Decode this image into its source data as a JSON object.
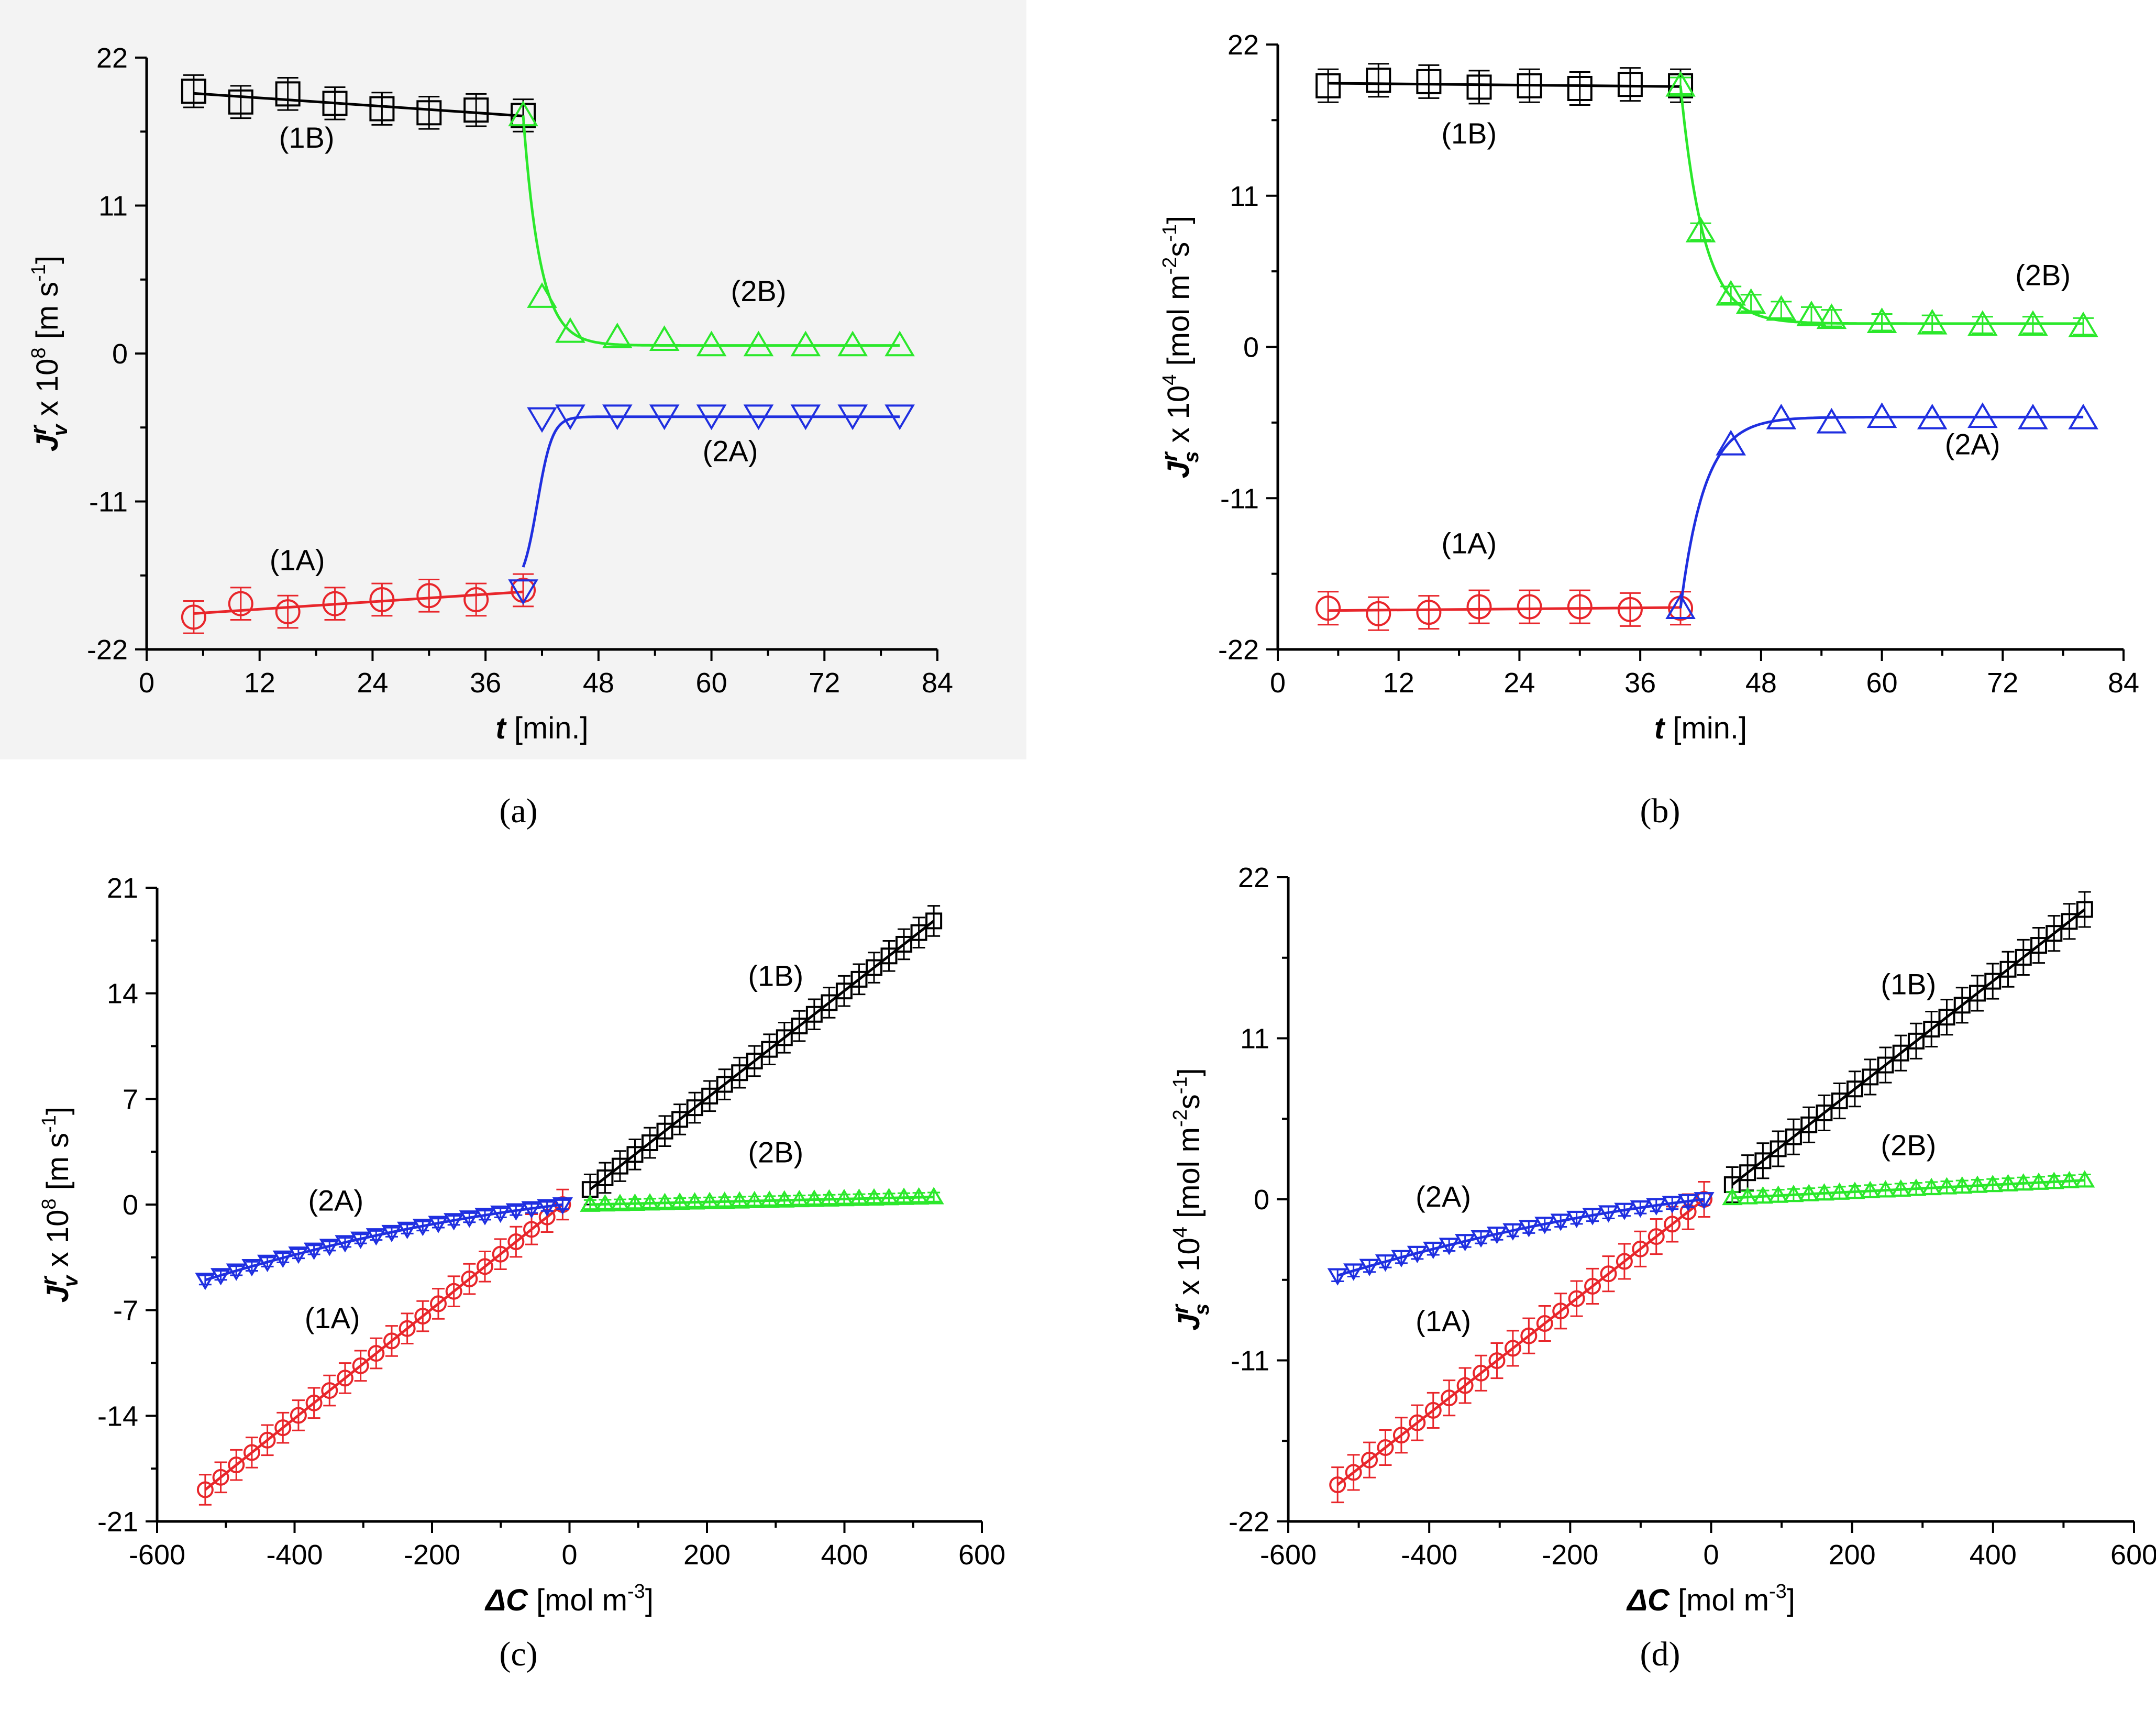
{
  "colors": {
    "black": "#000000",
    "red": "#e8262b",
    "green": "#2be82b",
    "blue": "#1f2fe0"
  },
  "chart_data": [
    {
      "id": "a",
      "type": "line",
      "caption": "(a)",
      "xlabel_var": "t",
      "xlabel_unit": " [min.]",
      "ylabel_var": "J",
      "ylabel_sup": "r",
      "ylabel_sub": "v",
      "ylabel_rest": " x 10",
      "ylabel_exp": "8",
      "ylabel_unit": " [m s",
      "ylabel_unit_exp": "-1",
      "ylabel_close": "]",
      "xlim": [
        0,
        84
      ],
      "ylim": [
        -22,
        22
      ],
      "xticks": [
        "0",
        "12",
        "24",
        "36",
        "48",
        "60",
        "72",
        "84"
      ],
      "yticks": [
        "-22",
        "-11",
        "0",
        "11",
        "22"
      ],
      "series": [
        {
          "name": "(1B)",
          "color": "black",
          "marker": "square",
          "size": "large",
          "x": [
            5,
            10,
            15,
            20,
            25,
            30,
            35,
            40
          ],
          "y": [
            19.5,
            18.7,
            19.3,
            18.6,
            18.2,
            17.9,
            18.1,
            17.7
          ],
          "err": 1.2,
          "fit": "linear"
        },
        {
          "name": "(1A)",
          "color": "red",
          "marker": "circle",
          "size": "large",
          "x": [
            5,
            10,
            15,
            20,
            25,
            30,
            35,
            40
          ],
          "y": [
            -19.6,
            -18.6,
            -19.2,
            -18.6,
            -18.3,
            -18.0,
            -18.3,
            -17.6
          ],
          "err": 1.2,
          "fit": "linear"
        },
        {
          "name": "(2B)",
          "color": "green",
          "marker": "triangle-up",
          "size": "large",
          "x": [
            40,
            42,
            45,
            50,
            55,
            60,
            65,
            70,
            75,
            80
          ],
          "y": [
            17.7,
            4.2,
            1.6,
            1.2,
            1.0,
            0.6,
            0.6,
            0.6,
            0.6,
            0.6
          ],
          "err": 0,
          "fit": "exp",
          "start": 17.7,
          "end": 0.6,
          "t0": 40,
          "tau": 1.8
        },
        {
          "name": "(2A)",
          "color": "blue",
          "marker": "triangle-down",
          "size": "large",
          "x": [
            40,
            42,
            45,
            50,
            55,
            60,
            65,
            70,
            75,
            80
          ],
          "y": [
            -17.6,
            -4.8,
            -4.6,
            -4.6,
            -4.6,
            -4.6,
            -4.6,
            -4.6,
            -4.6,
            -4.6
          ],
          "err": 0,
          "fit": "sigmoid",
          "start": -17.6,
          "end": -4.7,
          "t0": 41.5,
          "k": 0.8
        }
      ],
      "annotations": [
        {
          "text": "(1B)",
          "x": 17,
          "y": 15.3
        },
        {
          "text": "(2B)",
          "x": 65,
          "y": 3.9
        },
        {
          "text": "(2A)",
          "x": 62,
          "y": -8.0
        },
        {
          "text": "(1A)",
          "x": 16,
          "y": -16.1
        }
      ]
    },
    {
      "id": "b",
      "type": "line",
      "caption": "(b)",
      "xlabel_var": "t",
      "xlabel_unit": " [min.]",
      "ylabel_var": "J",
      "ylabel_sup": "r",
      "ylabel_sub": "s",
      "ylabel_rest": " x 10",
      "ylabel_exp": "4",
      "ylabel_unit": " [mol m",
      "ylabel_unit_exp": "-2",
      "ylabel_unit2": "s",
      "ylabel_unit2_exp": "-1",
      "ylabel_close": "]",
      "xlim": [
        0,
        84
      ],
      "ylim": [
        -22,
        22
      ],
      "xticks": [
        "0",
        "12",
        "24",
        "36",
        "48",
        "60",
        "72",
        "84"
      ],
      "yticks": [
        "-22",
        "-11",
        "0",
        "11",
        "22"
      ],
      "series": [
        {
          "name": "(1B)",
          "color": "black",
          "marker": "square",
          "size": "large",
          "x": [
            5,
            10,
            15,
            20,
            25,
            30,
            35,
            40
          ],
          "y": [
            19.0,
            19.4,
            19.3,
            18.9,
            19.0,
            18.8,
            19.1,
            19.0
          ],
          "err": 1.2,
          "fit": "linear"
        },
        {
          "name": "(1A)",
          "color": "red",
          "marker": "circle",
          "size": "large",
          "x": [
            5,
            10,
            15,
            20,
            25,
            30,
            35,
            40
          ],
          "y": [
            -19.0,
            -19.4,
            -19.3,
            -18.9,
            -18.9,
            -18.9,
            -19.1,
            -19.0
          ],
          "err": 1.2,
          "fit": "linear"
        },
        {
          "name": "(2B)",
          "color": "green",
          "marker": "triangle-up",
          "size": "large",
          "x": [
            40,
            42,
            45,
            47,
            50,
            53,
            55,
            60,
            65,
            70,
            75,
            80
          ],
          "y": [
            19.0,
            8.4,
            3.8,
            3.2,
            2.7,
            2.3,
            2.1,
            1.8,
            1.7,
            1.6,
            1.6,
            1.5
          ],
          "err": 0.6,
          "fit": "exp",
          "start": 19.0,
          "end": 1.7,
          "t0": 40,
          "tau": 2.3
        },
        {
          "name": "(2A)",
          "color": "blue",
          "marker": "triangle-up",
          "size": "large",
          "x": [
            40,
            45,
            50,
            55,
            60,
            65,
            70,
            75,
            80
          ],
          "y": [
            -19.0,
            -7.1,
            -5.2,
            -5.5,
            -5.1,
            -5.2,
            -5.1,
            -5.2,
            -5.2
          ],
          "err": 0,
          "fit": "exp",
          "start": -19.0,
          "end": -5.1,
          "t0": 40,
          "tau": 2.4
        }
      ],
      "annotations": [
        {
          "text": "(1B)",
          "x": 19,
          "y": 14.8
        },
        {
          "text": "(2B)",
          "x": 76,
          "y": 4.5
        },
        {
          "text": "(2A)",
          "x": 69,
          "y": -7.8
        },
        {
          "text": "(1A)",
          "x": 19,
          "y": -15.0
        }
      ]
    },
    {
      "id": "c",
      "type": "line",
      "caption": "(c)",
      "xlabel_var": "ΔC",
      "xlabel_unit": " [mol m",
      "xlabel_unit_exp": "-3",
      "xlabel_close": "]",
      "ylabel_var": "J",
      "ylabel_sup": "r",
      "ylabel_sub": "v",
      "ylabel_rest": " x 10",
      "ylabel_exp": "8",
      "ylabel_unit": " [m s",
      "ylabel_unit_exp": "-1",
      "ylabel_close": "]",
      "xlim": [
        -600,
        600
      ],
      "ylim": [
        -21,
        21
      ],
      "xticks": [
        "-600",
        "-400",
        "-200",
        "0",
        "200",
        "400",
        "600"
      ],
      "yticks": [
        "-21",
        "-14",
        "-7",
        "0",
        "7",
        "14",
        "21"
      ],
      "series": [
        {
          "name": "(1B)",
          "color": "black",
          "marker": "square",
          "size": "small",
          "x_from": 30,
          "x_to": 530,
          "n": 24,
          "y_from": 1.0,
          "y_to": 18.8,
          "err": 1.0,
          "fit": "linear"
        },
        {
          "name": "(2B)",
          "color": "green",
          "marker": "triangle-up",
          "size": "small",
          "x_from": 30,
          "x_to": 530,
          "n": 24,
          "y_from": 0.0,
          "y_to": 0.5,
          "err": 0.3,
          "fit": "linear"
        },
        {
          "name": "(1A)",
          "color": "red",
          "marker": "circle",
          "size": "small",
          "x_from": -530,
          "x_to": -10,
          "n": 24,
          "y_from": -18.9,
          "y_to": 0.0,
          "err": 1.0,
          "fit": "linear"
        },
        {
          "name": "(2A)",
          "color": "blue",
          "marker": "triangle-down",
          "size": "small",
          "x_from": -530,
          "x_to": -10,
          "n": 24,
          "y_from": -5.0,
          "y_to": 0.0,
          "err": 0.3,
          "fit": "quad"
        }
      ],
      "annotations": [
        {
          "text": "(1B)",
          "x": 300,
          "y": 14.5
        },
        {
          "text": "(2B)",
          "x": 300,
          "y": 2.8
        },
        {
          "text": "(2A)",
          "x": -340,
          "y": -0.4
        },
        {
          "text": "(1A)",
          "x": -345,
          "y": -8.2
        }
      ]
    },
    {
      "id": "d",
      "type": "line",
      "caption": "(d)",
      "xlabel_var": "ΔC",
      "xlabel_unit": " [mol m",
      "xlabel_unit_exp": "-3",
      "xlabel_close": "]",
      "ylabel_var": "J",
      "ylabel_sup": "r",
      "ylabel_sub": "s",
      "ylabel_rest": " x 10",
      "ylabel_exp": "4",
      "ylabel_unit": " [mol m",
      "ylabel_unit_exp": "-2",
      "ylabel_unit2": "s",
      "ylabel_unit2_exp": "-1",
      "ylabel_close": "]",
      "xlim": [
        -600,
        600
      ],
      "ylim": [
        -22,
        22
      ],
      "xticks": [
        "-600",
        "-400",
        "-200",
        "0",
        "200",
        "400",
        "600"
      ],
      "yticks": [
        "-22",
        "-11",
        "0",
        "11",
        "22"
      ],
      "series": [
        {
          "name": "(1B)",
          "color": "black",
          "marker": "square",
          "size": "small",
          "x_from": 30,
          "x_to": 530,
          "n": 24,
          "y_from": 1.0,
          "y_to": 19.8,
          "err": 1.2,
          "fit": "linear"
        },
        {
          "name": "(2B)",
          "color": "green",
          "marker": "triangle-up",
          "size": "small",
          "x_from": 30,
          "x_to": 530,
          "n": 24,
          "y_from": 0.1,
          "y_to": 1.3,
          "err": 0.4,
          "fit": "linear"
        },
        {
          "name": "(1A)",
          "color": "red",
          "marker": "circle",
          "size": "small",
          "x_from": -530,
          "x_to": -10,
          "n": 24,
          "y_from": -19.5,
          "y_to": 0.0,
          "err": 1.2,
          "fit": "linear"
        },
        {
          "name": "(2A)",
          "color": "blue",
          "marker": "triangle-down",
          "size": "small",
          "x_from": -530,
          "x_to": -10,
          "n": 24,
          "y_from": -5.2,
          "y_to": 0.0,
          "err": 0.4,
          "fit": "quad"
        }
      ],
      "annotations": [
        {
          "text": "(1B)",
          "x": 280,
          "y": 14.0
        },
        {
          "text": "(2B)",
          "x": 280,
          "y": 3.0
        },
        {
          "text": "(2A)",
          "x": -380,
          "y": -0.5
        },
        {
          "text": "(1A)",
          "x": -380,
          "y": -9.0
        }
      ]
    }
  ]
}
